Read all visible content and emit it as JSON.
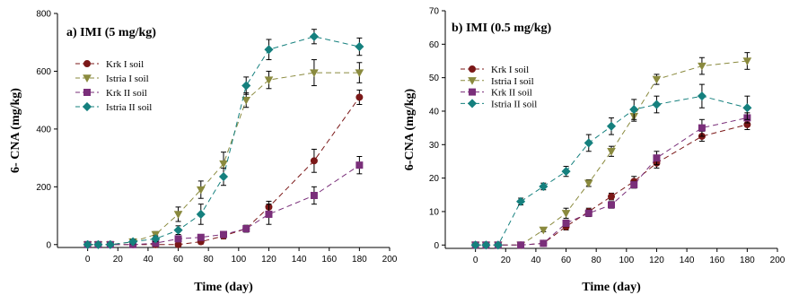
{
  "chart_data": [
    {
      "type": "line",
      "title": "a) IMI (5 mg/kg)",
      "xlabel": "Time (day)",
      "ylabel": "6- CNA (mg/kg)",
      "xlim": [
        -20,
        200
      ],
      "ylim": [
        -10,
        800
      ],
      "xticks": [
        "0",
        "20",
        "40",
        "60",
        "80",
        "100",
        "120",
        "140",
        "160",
        "180",
        "200"
      ],
      "yticks": [
        "0",
        "200",
        "400",
        "600",
        "800"
      ],
      "legend_position": "upper-left",
      "grid": false,
      "series": [
        {
          "name": "Krk I soil",
          "color": "#7b1818",
          "marker": "circle",
          "x": [
            0,
            7,
            15,
            30,
            45,
            60,
            75,
            90,
            105,
            120,
            150,
            180
          ],
          "y": [
            0,
            0,
            0,
            0,
            0,
            0,
            10,
            30,
            55,
            130,
            290,
            510
          ],
          "err": [
            5,
            5,
            5,
            5,
            5,
            5,
            8,
            10,
            12,
            20,
            40,
            25
          ]
        },
        {
          "name": "Istria I soil",
          "color": "#8a8a3e",
          "marker": "triangle-down",
          "x": [
            0,
            7,
            15,
            30,
            45,
            60,
            75,
            90,
            105,
            120,
            150,
            180
          ],
          "y": [
            0,
            0,
            0,
            10,
            35,
            105,
            190,
            280,
            500,
            570,
            595,
            595
          ],
          "err": [
            5,
            5,
            5,
            8,
            10,
            25,
            30,
            40,
            25,
            30,
            45,
            35
          ]
        },
        {
          "name": "Krk II soil",
          "color": "#7a2f7a",
          "marker": "square",
          "x": [
            0,
            7,
            15,
            30,
            45,
            60,
            75,
            90,
            105,
            120,
            150,
            180
          ],
          "y": [
            0,
            0,
            0,
            0,
            5,
            20,
            25,
            35,
            55,
            105,
            170,
            275
          ],
          "err": [
            5,
            5,
            5,
            5,
            5,
            8,
            8,
            10,
            10,
            35,
            30,
            30
          ]
        },
        {
          "name": "Istria II soil",
          "color": "#15807e",
          "marker": "diamond",
          "x": [
            0,
            7,
            15,
            30,
            45,
            60,
            75,
            90,
            105,
            120,
            150,
            180
          ],
          "y": [
            0,
            0,
            0,
            10,
            20,
            50,
            105,
            235,
            550,
            675,
            720,
            685
          ],
          "err": [
            5,
            5,
            5,
            8,
            10,
            15,
            35,
            30,
            30,
            35,
            25,
            30
          ]
        }
      ]
    },
    {
      "type": "line",
      "title": "b) IMI (0.5 mg/kg)",
      "xlabel": "Time (day)",
      "ylabel": "6-CNA (mg/kg)",
      "xlim": [
        -20,
        200
      ],
      "ylim": [
        -1,
        70
      ],
      "xticks": [
        "0",
        "20",
        "40",
        "60",
        "80",
        "100",
        "120",
        "140",
        "160",
        "180",
        "200"
      ],
      "yticks": [
        "0",
        "10",
        "20",
        "30",
        "40",
        "50",
        "60",
        "70"
      ],
      "legend_position": "upper-left",
      "grid": false,
      "series": [
        {
          "name": "Krk I soil",
          "color": "#7b1818",
          "marker": "circle",
          "x": [
            0,
            7,
            15,
            30,
            45,
            60,
            75,
            90,
            105,
            120,
            150,
            180
          ],
          "y": [
            0,
            0,
            0,
            0,
            0.5,
            5.5,
            10,
            14.5,
            19,
            24.5,
            32.5,
            36
          ],
          "err": [
            0.3,
            0.3,
            0.3,
            0.3,
            0.5,
            1,
            1,
            1,
            1.5,
            1.5,
            1.5,
            1.5
          ]
        },
        {
          "name": "Istria I soil",
          "color": "#8a8a3e",
          "marker": "triangle-down",
          "x": [
            0,
            7,
            15,
            30,
            45,
            60,
            75,
            90,
            105,
            120,
            150,
            180
          ],
          "y": [
            0,
            0,
            0,
            0,
            4.5,
            9.5,
            18.5,
            28,
            38.5,
            49.5,
            53.5,
            55
          ],
          "err": [
            0.3,
            0.3,
            0.3,
            0.3,
            0.5,
            1.5,
            1,
            1.5,
            1.5,
            1.5,
            2.5,
            2.5
          ]
        },
        {
          "name": "Krk II soil",
          "color": "#7a2f7a",
          "marker": "square",
          "x": [
            0,
            7,
            15,
            30,
            45,
            60,
            75,
            90,
            105,
            120,
            150,
            180
          ],
          "y": [
            0,
            0,
            0,
            0,
            0.5,
            6.5,
            9.5,
            12,
            18,
            26,
            35,
            38
          ],
          "err": [
            0.3,
            0.3,
            0.3,
            0.3,
            0.5,
            1,
            1,
            1,
            1,
            2,
            2.5,
            1.5
          ]
        },
        {
          "name": "Istria II soil",
          "color": "#15807e",
          "marker": "diamond",
          "x": [
            0,
            7,
            15,
            30,
            45,
            60,
            75,
            90,
            105,
            120,
            150,
            180
          ],
          "y": [
            0,
            0,
            0,
            13,
            17.5,
            22,
            30.5,
            35.5,
            40.5,
            42,
            44.5,
            41
          ],
          "err": [
            0.3,
            0.3,
            0.3,
            1,
            1,
            1.5,
            2.5,
            2.5,
            3,
            2.5,
            3.5,
            3.5
          ]
        }
      ]
    }
  ]
}
